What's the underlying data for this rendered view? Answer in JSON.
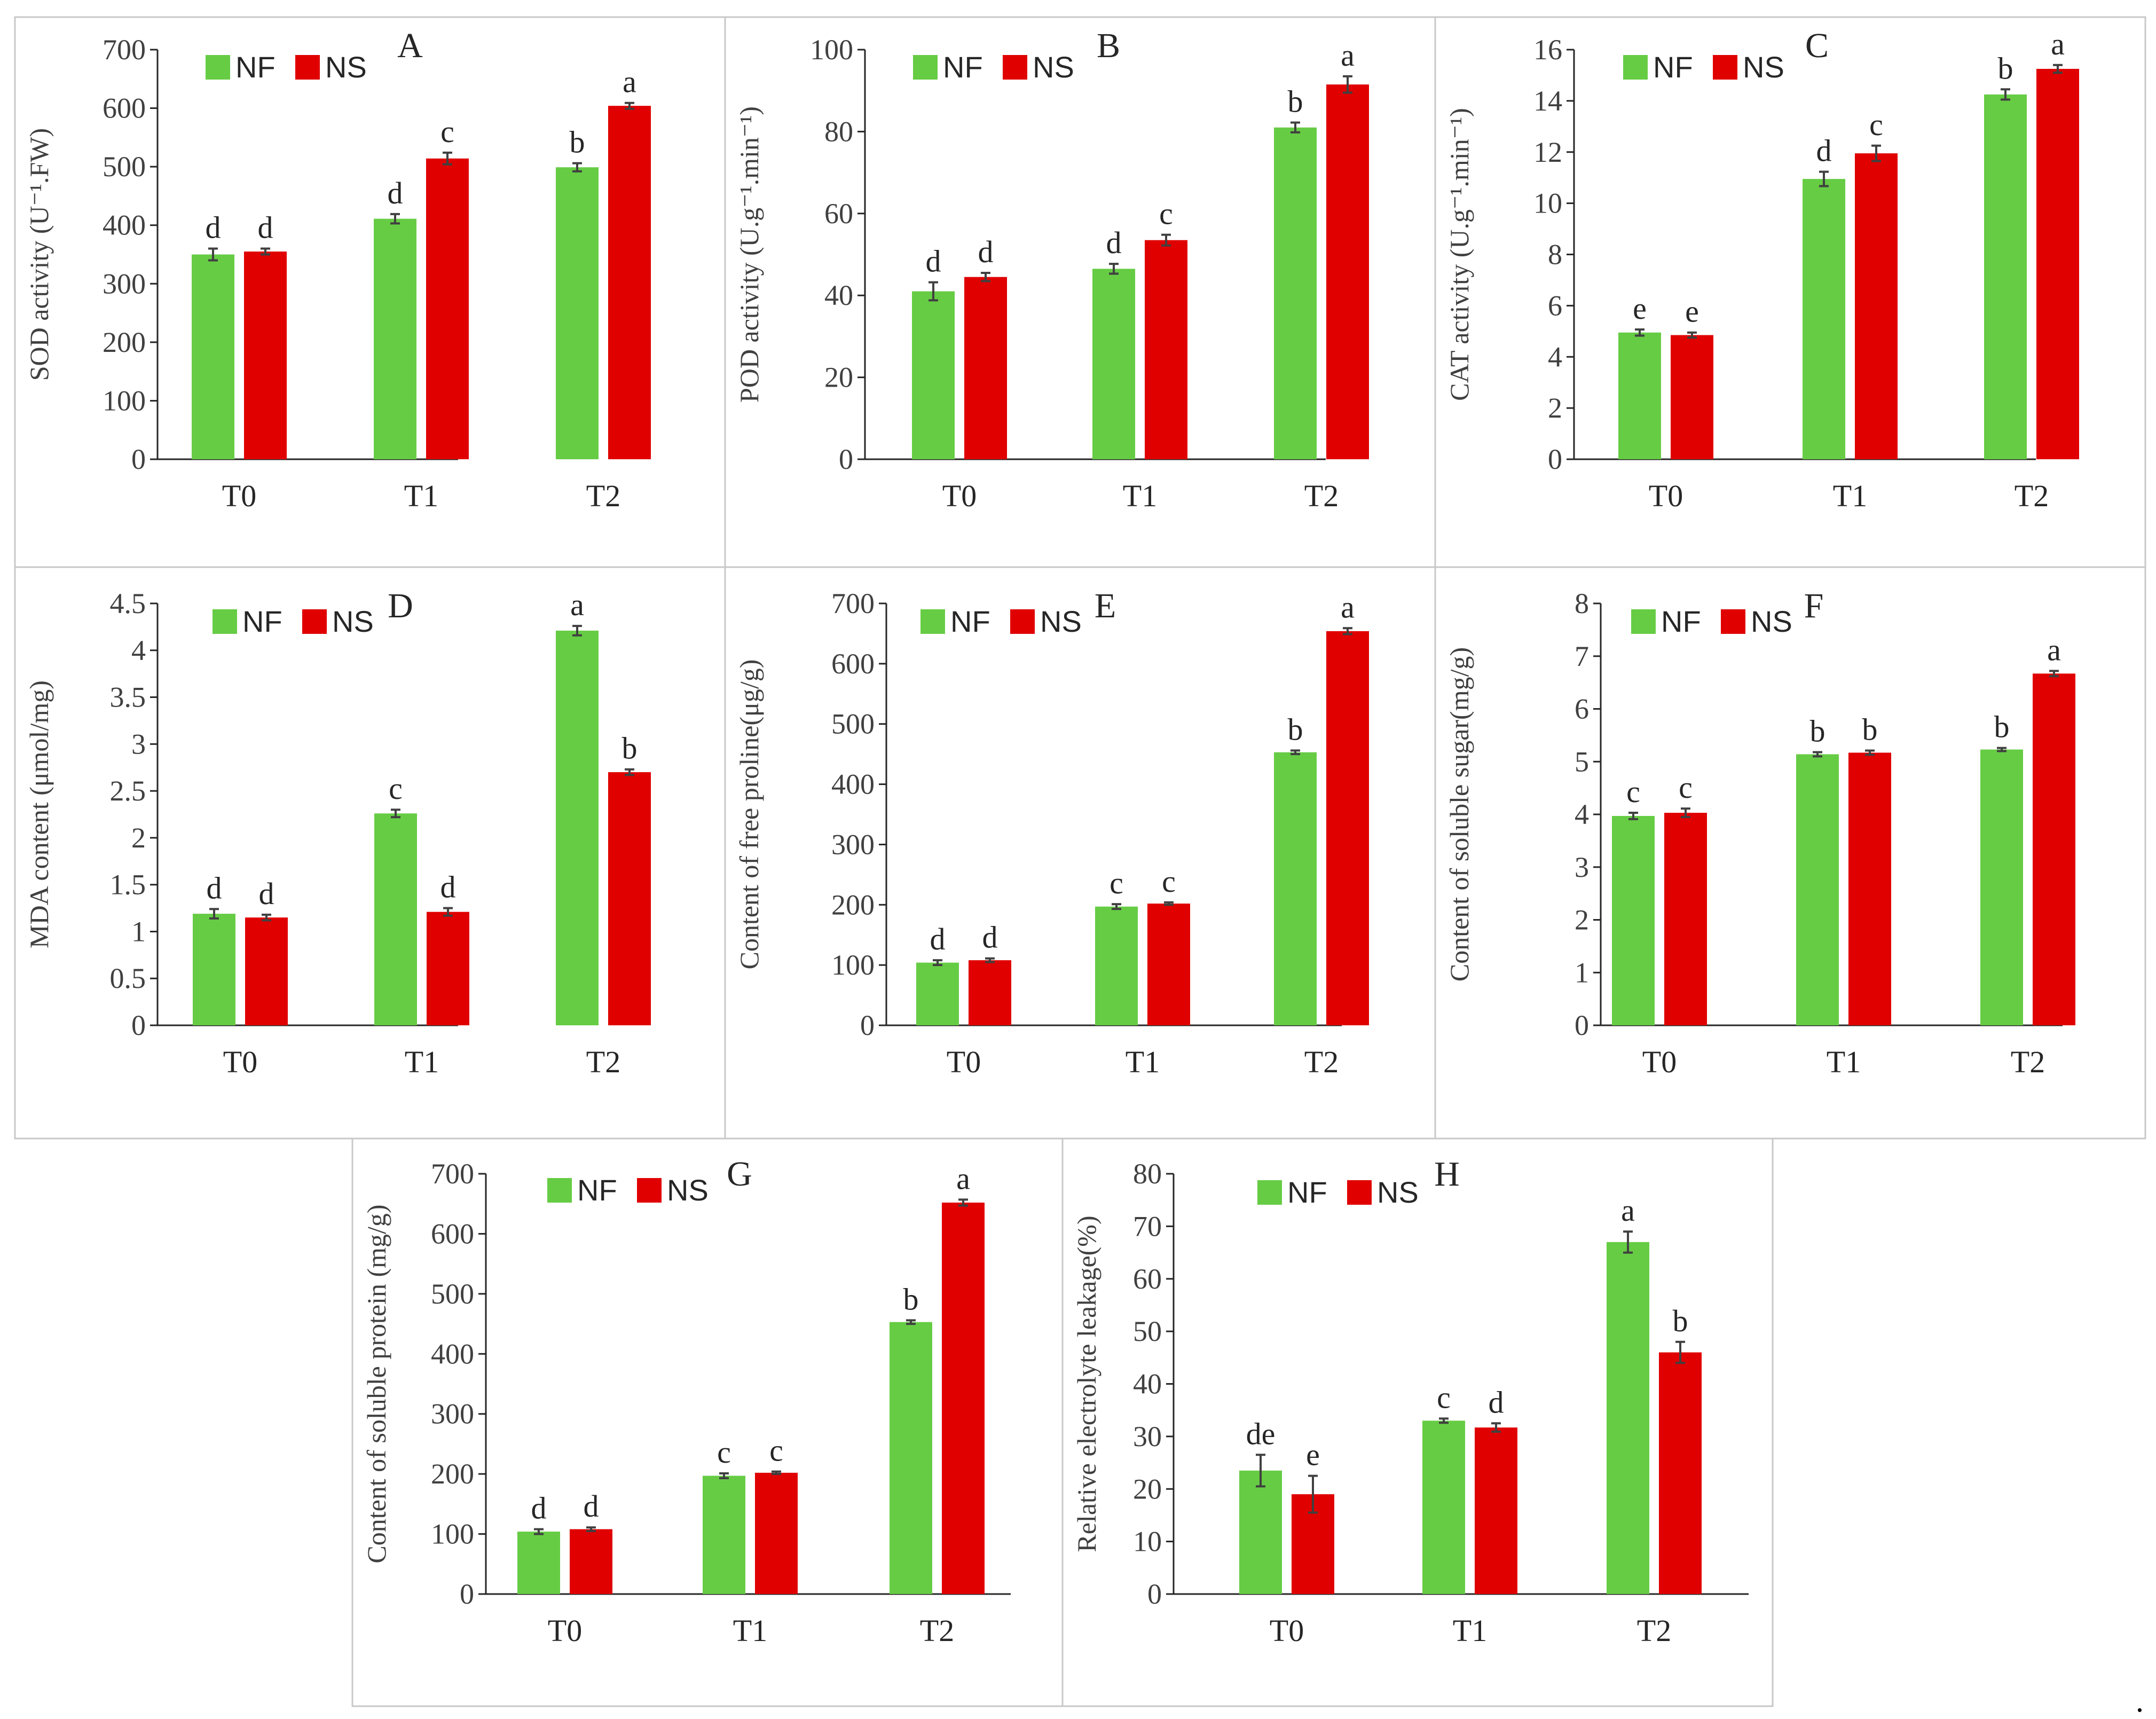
{
  "colors": {
    "NF": "#66cc44",
    "NS": "#e00000"
  },
  "legend": {
    "nf": "NF",
    "ns": "NS"
  },
  "trailing_mark": ".",
  "chart_data": [
    {
      "type": "bar",
      "panel": "A",
      "ylabel": "SOD activity (U⁻¹.FW)",
      "ylim": [
        0,
        700
      ],
      "yticks": [
        "0",
        "100",
        "200",
        "300",
        "400",
        "500",
        "600",
        "700"
      ],
      "categories": [
        "T0",
        "T1",
        "T2"
      ],
      "series": [
        {
          "name": "NF",
          "values": [
            350,
            411,
            499
          ],
          "errors": [
            10,
            8,
            7
          ],
          "letters": [
            "d",
            "d",
            "b"
          ]
        },
        {
          "name": "NS",
          "values": [
            355,
            514,
            604
          ],
          "errors": [
            5,
            10,
            5
          ],
          "letters": [
            "d",
            "c",
            "a"
          ]
        }
      ]
    },
    {
      "type": "bar",
      "panel": "B",
      "ylabel": "POD activity (U.g⁻¹.min⁻¹)",
      "ylim": [
        0,
        100
      ],
      "yticks": [
        "0",
        "20",
        "40",
        "60",
        "80",
        "100"
      ],
      "categories": [
        "T0",
        "T1",
        "T2"
      ],
      "series": [
        {
          "name": "NF",
          "values": [
            41,
            46.5,
            81
          ],
          "errors": [
            2.2,
            1.2,
            1.2
          ],
          "letters": [
            "d",
            "d",
            "b"
          ]
        },
        {
          "name": "NS",
          "values": [
            44.5,
            53.5,
            91.5
          ],
          "errors": [
            1,
            1.3,
            2
          ],
          "letters": [
            "d",
            "c",
            "a"
          ]
        }
      ]
    },
    {
      "type": "bar",
      "panel": "C",
      "ylabel": "CAT activity (U.g⁻¹.min⁻¹)",
      "ylim": [
        0,
        16
      ],
      "yticks": [
        "0",
        "2",
        "4",
        "6",
        "8",
        "10",
        "12",
        "14",
        "16"
      ],
      "categories": [
        "T0",
        "T1",
        "T2"
      ],
      "series": [
        {
          "name": "NF",
          "values": [
            4.95,
            10.95,
            14.25
          ],
          "errors": [
            0.12,
            0.28,
            0.2
          ],
          "letters": [
            "e",
            "d",
            "b"
          ]
        },
        {
          "name": "NS",
          "values": [
            4.85,
            11.95,
            15.25
          ],
          "errors": [
            0.1,
            0.3,
            0.15
          ],
          "letters": [
            "e",
            "c",
            "a"
          ]
        }
      ]
    },
    {
      "type": "bar",
      "panel": "D",
      "ylabel": "MDA content (μmol/mg)",
      "ylim": [
        0,
        4.5
      ],
      "yticks": [
        "0",
        "0.5",
        "1",
        "1.5",
        "2",
        "2.5",
        "3",
        "3.5",
        "4",
        "4.5"
      ],
      "categories": [
        "T0",
        "T1",
        "T2"
      ],
      "series": [
        {
          "name": "NF",
          "values": [
            1.19,
            2.26,
            4.21
          ],
          "errors": [
            0.05,
            0.04,
            0.05
          ],
          "letters": [
            "d",
            "c",
            "a"
          ]
        },
        {
          "name": "NS",
          "values": [
            1.15,
            1.21,
            2.7
          ],
          "errors": [
            0.03,
            0.04,
            0.03
          ],
          "letters": [
            "d",
            "d",
            "b"
          ]
        }
      ]
    },
    {
      "type": "bar",
      "panel": "E",
      "ylabel": "Content of free proline(μg/g)",
      "ylim": [
        0,
        700
      ],
      "yticks": [
        "0",
        "100",
        "200",
        "300",
        "400",
        "500",
        "600",
        "700"
      ],
      "categories": [
        "T0",
        "T1",
        "T2"
      ],
      "series": [
        {
          "name": "NF",
          "values": [
            104,
            197,
            453
          ],
          "errors": [
            4,
            4,
            3
          ],
          "letters": [
            "d",
            "c",
            "b"
          ]
        },
        {
          "name": "NS",
          "values": [
            108,
            202,
            654
          ],
          "errors": [
            3,
            2,
            5
          ],
          "letters": [
            "d",
            "c",
            "a"
          ]
        }
      ]
    },
    {
      "type": "bar",
      "panel": "F",
      "ylabel": "Content of soluble sugar(mg/g)",
      "ylim": [
        0,
        8
      ],
      "yticks": [
        "0",
        "1",
        "2",
        "3",
        "4",
        "5",
        "6",
        "7",
        "8"
      ],
      "categories": [
        "T0",
        "T1",
        "T2"
      ],
      "series": [
        {
          "name": "NF",
          "values": [
            3.97,
            5.14,
            5.23
          ],
          "errors": [
            0.06,
            0.04,
            0.03
          ],
          "letters": [
            "c",
            "b",
            "b"
          ]
        },
        {
          "name": "NS",
          "values": [
            4.03,
            5.17,
            6.67
          ],
          "errors": [
            0.08,
            0.04,
            0.05
          ],
          "letters": [
            "c",
            "b",
            "a"
          ]
        }
      ]
    },
    {
      "type": "bar",
      "panel": "G",
      "ylabel": "Content of soluble protein (mg/g)",
      "ylim": [
        0,
        700
      ],
      "yticks": [
        "0",
        "100",
        "200",
        "300",
        "400",
        "500",
        "600",
        "700"
      ],
      "categories": [
        "T0",
        "T1",
        "T2"
      ],
      "series": [
        {
          "name": "NF",
          "values": [
            104,
            197,
            453
          ],
          "errors": [
            4,
            4,
            3
          ],
          "letters": [
            "d",
            "c",
            "b"
          ]
        },
        {
          "name": "NS",
          "values": [
            108,
            202,
            652
          ],
          "errors": [
            3,
            2,
            5
          ],
          "letters": [
            "d",
            "c",
            "a"
          ]
        }
      ]
    },
    {
      "type": "bar",
      "panel": "H",
      "ylabel": "Relative electrolyte leakage(%)",
      "ylim": [
        0,
        80
      ],
      "yticks": [
        "0",
        "10",
        "20",
        "30",
        "40",
        "50",
        "60",
        "70",
        "80"
      ],
      "categories": [
        "T0",
        "T1",
        "T2"
      ],
      "series": [
        {
          "name": "NF",
          "values": [
            23.5,
            33,
            67
          ],
          "errors": [
            3,
            0.4,
            2
          ],
          "letters": [
            "de",
            "c",
            "a"
          ]
        },
        {
          "name": "NS",
          "values": [
            19,
            31.7,
            46
          ],
          "errors": [
            3.5,
            0.8,
            2
          ],
          "letters": [
            "e",
            "d",
            "b"
          ]
        }
      ]
    }
  ]
}
